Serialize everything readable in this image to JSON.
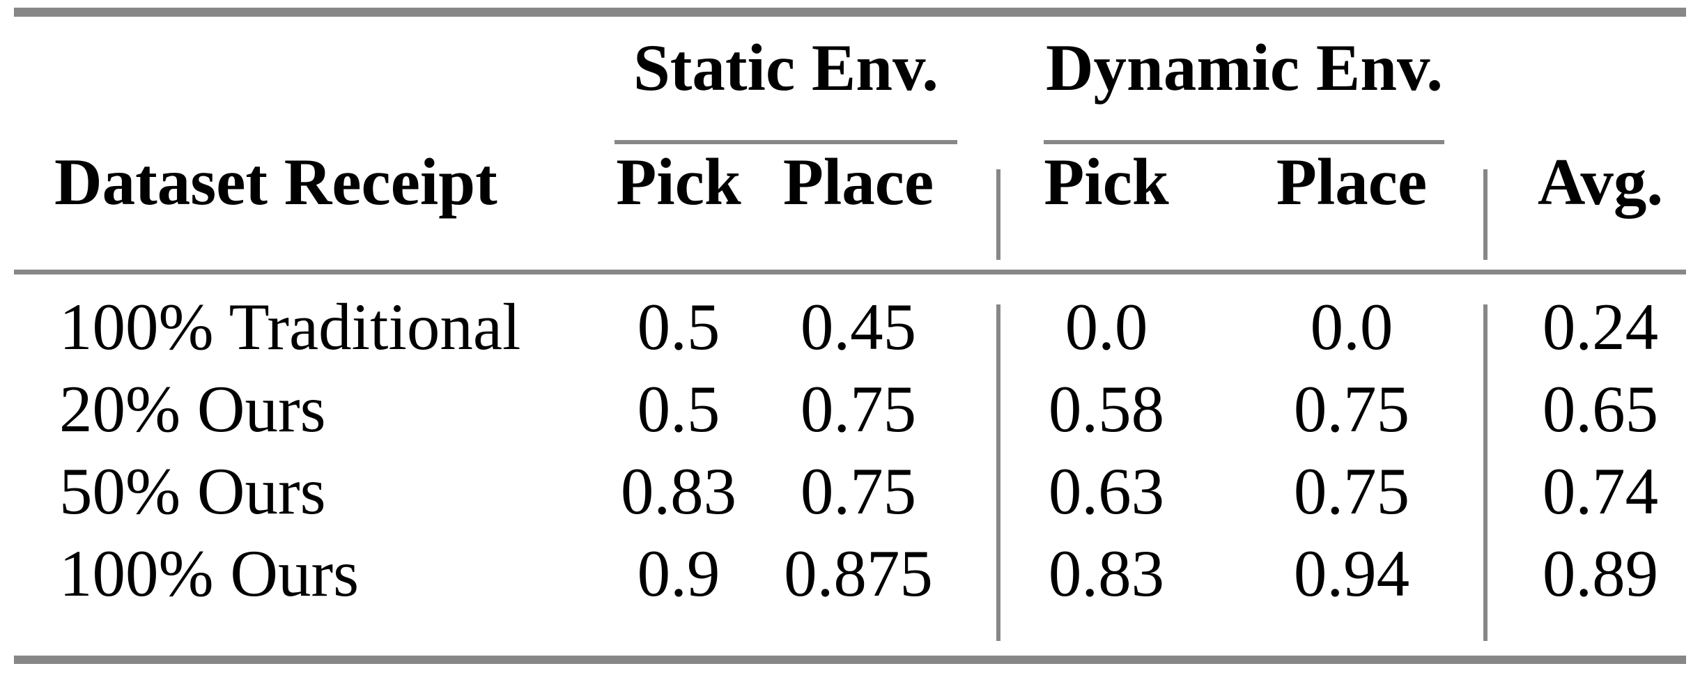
{
  "page": {
    "background_color": "#ffffff",
    "rule_color": "#878787",
    "text_color": "#000000"
  },
  "table": {
    "column_groups": [
      {
        "label": "Static Env."
      },
      {
        "label": "Dynamic Env."
      }
    ],
    "headers": {
      "row_header": "Dataset Receipt",
      "static_pick": "Pick",
      "static_place": "Place",
      "dynamic_pick": "Pick",
      "dynamic_place": "Place",
      "avg": "Avg."
    },
    "rows": [
      {
        "cells": [
          "100% Traditional",
          "0.5",
          "0.45",
          "0.0",
          "0.0",
          "0.24"
        ]
      },
      {
        "cells": [
          "20% Ours",
          "0.5",
          "0.75",
          "0.58",
          "0.75",
          "0.65"
        ]
      },
      {
        "cells": [
          "50% Ours",
          "0.83",
          "0.75",
          "0.63",
          "0.75",
          "0.74"
        ]
      },
      {
        "cells": [
          "100% Ours",
          "0.9",
          "0.875",
          "0.83",
          "0.94",
          "0.89"
        ]
      }
    ]
  },
  "chart_data": {
    "type": "table",
    "column_groups": [
      "Static Env.",
      "Dynamic Env."
    ],
    "columns": [
      "Dataset Receipt",
      "Static Env. Pick",
      "Static Env. Place",
      "Dynamic Env. Pick",
      "Dynamic Env. Place",
      "Avg."
    ],
    "rows": [
      [
        "100% Traditional",
        0.5,
        0.45,
        0.0,
        0.0,
        0.24
      ],
      [
        "20% Ours",
        0.5,
        0.75,
        0.58,
        0.75,
        0.65
      ],
      [
        "50% Ours",
        0.83,
        0.75,
        0.63,
        0.75,
        0.74
      ],
      [
        "100% Ours",
        0.9,
        0.875,
        0.83,
        0.94,
        0.89
      ]
    ]
  }
}
